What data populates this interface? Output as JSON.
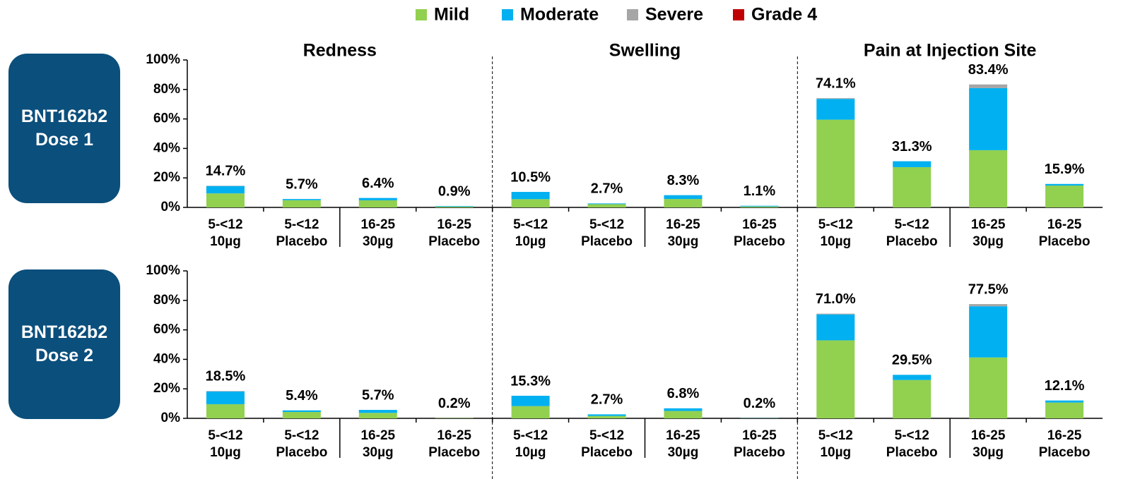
{
  "chart_data": [
    {
      "type": "bar",
      "stacked": true,
      "row_label": "BNT162b2 Dose 1",
      "panel_titles": [
        "Redness",
        "Swelling",
        "Pain at Injection Site"
      ],
      "categories": [
        [
          "5-<12",
          "10µg"
        ],
        [
          "5-<12",
          "Placebo"
        ],
        [
          "16-25",
          "30µg"
        ],
        [
          "16-25",
          "Placebo"
        ],
        [
          "5-<12",
          "10µg"
        ],
        [
          "5-<12",
          "Placebo"
        ],
        [
          "16-25",
          "30µg"
        ],
        [
          "16-25",
          "Placebo"
        ],
        [
          "5-<12",
          "10µg"
        ],
        [
          "5-<12",
          "Placebo"
        ],
        [
          "16-25",
          "30µg"
        ],
        [
          "16-25",
          "Placebo"
        ]
      ],
      "series": [
        {
          "name": "Mild",
          "color": "#92d050",
          "values": [
            9.5,
            4.9,
            4.8,
            0.5,
            5.6,
            2.2,
            5.7,
            0.6,
            59.5,
            27.3,
            38.8,
            14.8
          ]
        },
        {
          "name": "Moderate",
          "color": "#00b0f0",
          "values": [
            5.0,
            0.8,
            1.6,
            0.4,
            4.9,
            0.5,
            2.6,
            0.5,
            14.1,
            4.0,
            42.1,
            1.1
          ]
        },
        {
          "name": "Severe",
          "color": "#a6a6a6",
          "values": [
            0.2,
            0,
            0,
            0,
            0,
            0,
            0,
            0,
            0.5,
            0,
            2.5,
            0
          ]
        },
        {
          "name": "Grade 4",
          "color": "#c00000",
          "values": [
            0,
            0,
            0,
            0,
            0,
            0,
            0,
            0,
            0,
            0,
            0,
            0
          ]
        }
      ],
      "totals": [
        14.7,
        5.7,
        6.4,
        0.9,
        10.5,
        2.7,
        8.3,
        1.1,
        74.1,
        31.3,
        83.4,
        15.9
      ],
      "total_labels": [
        "14.7%",
        "5.7%",
        "6.4%",
        "0.9%",
        "10.5%",
        "2.7%",
        "8.3%",
        "1.1%",
        "74.1%",
        "31.3%",
        "83.4%",
        "15.9%"
      ],
      "ylim": [
        0,
        100
      ],
      "yticks": [
        {
          "value": 0,
          "label": "0%"
        },
        {
          "value": 20,
          "label": "20%"
        },
        {
          "value": 40,
          "label": "40%"
        },
        {
          "value": 60,
          "label": "60%"
        },
        {
          "value": 80,
          "label": "80%"
        },
        {
          "value": 100,
          "label": "100%"
        }
      ]
    },
    {
      "type": "bar",
      "stacked": true,
      "row_label": "BNT162b2 Dose 2",
      "categories": [
        [
          "5-<12",
          "10µg"
        ],
        [
          "5-<12",
          "Placebo"
        ],
        [
          "16-25",
          "30µg"
        ],
        [
          "16-25",
          "Placebo"
        ],
        [
          "5-<12",
          "10µg"
        ],
        [
          "5-<12",
          "Placebo"
        ],
        [
          "16-25",
          "30µg"
        ],
        [
          "16-25",
          "Placebo"
        ],
        [
          "5-<12",
          "10µg"
        ],
        [
          "5-<12",
          "Placebo"
        ],
        [
          "16-25",
          "30µg"
        ],
        [
          "16-25",
          "Placebo"
        ]
      ],
      "series": [
        {
          "name": "Mild",
          "color": "#92d050",
          "values": [
            9.6,
            4.3,
            3.7,
            0.2,
            8.3,
            1.6,
            5.0,
            0.1,
            52.9,
            26.0,
            41.3,
            10.7
          ]
        },
        {
          "name": "Moderate",
          "color": "#00b0f0",
          "values": [
            8.6,
            1.1,
            2.0,
            0,
            7.0,
            1.1,
            1.8,
            0.1,
            17.6,
            3.5,
            34.7,
            1.4
          ]
        },
        {
          "name": "Severe",
          "color": "#a6a6a6",
          "values": [
            0.3,
            0,
            0,
            0,
            0,
            0,
            0,
            0,
            0.5,
            0,
            1.5,
            0
          ]
        },
        {
          "name": "Grade 4",
          "color": "#c00000",
          "values": [
            0,
            0,
            0,
            0,
            0,
            0,
            0,
            0,
            0,
            0,
            0,
            0
          ]
        }
      ],
      "totals": [
        18.5,
        5.4,
        5.7,
        0.2,
        15.3,
        2.7,
        6.8,
        0.2,
        71.0,
        29.5,
        77.5,
        12.1
      ],
      "total_labels": [
        "18.5%",
        "5.4%",
        "5.7%",
        "0.2%",
        "15.3%",
        "2.7%",
        "6.8%",
        "0.2%",
        "71.0%",
        "29.5%",
        "77.5%",
        "12.1%"
      ],
      "ylim": [
        0,
        100
      ],
      "yticks": [
        {
          "value": 0,
          "label": "0%"
        },
        {
          "value": 20,
          "label": "20%"
        },
        {
          "value": 40,
          "label": "40%"
        },
        {
          "value": 60,
          "label": "60%"
        },
        {
          "value": 80,
          "label": "80%"
        },
        {
          "value": 100,
          "label": "100%"
        }
      ]
    }
  ]
}
